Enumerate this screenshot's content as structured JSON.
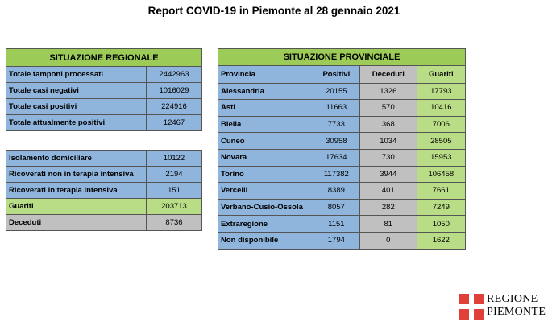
{
  "title": "Report COVID-19 in Piemonte al 28 gennaio 2021",
  "regionale": {
    "header": "SITUAZIONE REGIONALE",
    "rows": [
      {
        "label": "Totale tamponi processati",
        "value": "2442963"
      },
      {
        "label": "Totale casi negativi",
        "value": "1016029"
      },
      {
        "label": "Totale casi positivi",
        "value": "224916"
      },
      {
        "label": "Totale attualmente positivi",
        "value": "12467"
      }
    ]
  },
  "dettaglio": {
    "rows": [
      {
        "label": "Isolamento domiciliare",
        "value": "10122"
      },
      {
        "label": "Ricoverati non in terapia intensiva",
        "value": "2194"
      },
      {
        "label": "Ricoverati in terapia intensiva",
        "value": "151"
      },
      {
        "label": "Guariti",
        "value": "203713"
      },
      {
        "label": "Deceduti",
        "value": "8736"
      }
    ]
  },
  "provinciale": {
    "header": "SITUAZIONE PROVINCIALE",
    "columns": [
      "Provincia",
      "Positivi",
      "Deceduti",
      "Guariti"
    ],
    "rows": [
      {
        "provincia": "Alessandria",
        "positivi": "20155",
        "deceduti": "1326",
        "guariti": "17793"
      },
      {
        "provincia": "Asti",
        "positivi": "11663",
        "deceduti": "570",
        "guariti": "10416"
      },
      {
        "provincia": "Biella",
        "positivi": "7733",
        "deceduti": "368",
        "guariti": "7006"
      },
      {
        "provincia": "Cuneo",
        "positivi": "30958",
        "deceduti": "1034",
        "guariti": "28505"
      },
      {
        "provincia": "Novara",
        "positivi": "17634",
        "deceduti": "730",
        "guariti": "15953"
      },
      {
        "provincia": "Torino",
        "positivi": "117382",
        "deceduti": "3944",
        "guariti": "106458"
      },
      {
        "provincia": "Vercelli",
        "positivi": "8389",
        "deceduti": "401",
        "guariti": "7661"
      },
      {
        "provincia": "Verbano-Cusio-Ossola",
        "positivi": "8057",
        "deceduti": "282",
        "guariti": "7249"
      },
      {
        "provincia": "Extraregione",
        "positivi": "1151",
        "deceduti": "81",
        "guariti": "1050"
      },
      {
        "provincia": "Non disponibile",
        "positivi": "1794",
        "deceduti": "0",
        "guariti": "1622"
      }
    ]
  },
  "logo": {
    "line1": "REGIONE",
    "line2": "PIEMONTE"
  },
  "colors": {
    "header": "#9ccb57",
    "blue": "#8fb5dd",
    "green": "#b9dc86",
    "gray": "#c0c0c0",
    "flag": "#e0403a"
  }
}
